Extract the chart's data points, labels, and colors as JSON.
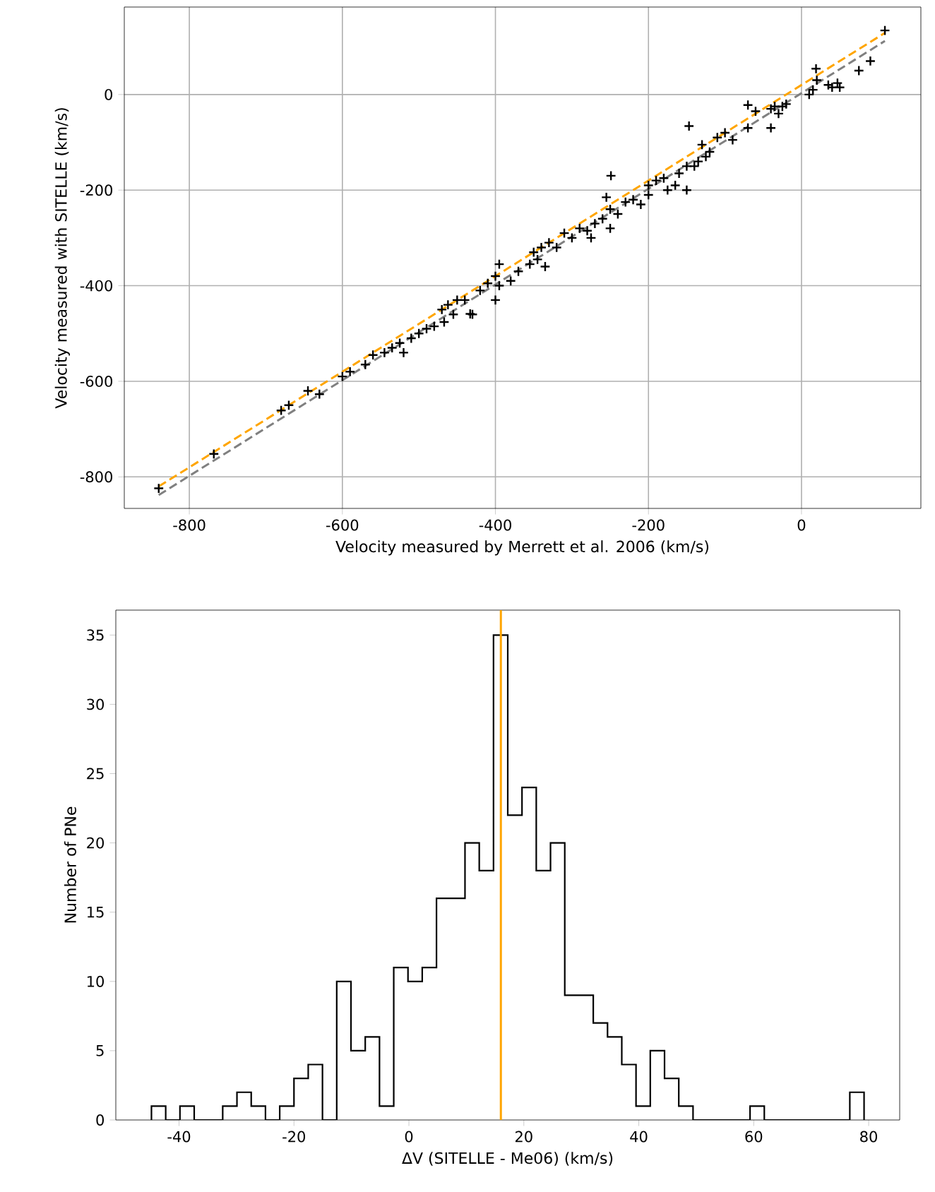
{
  "chart_data": [
    {
      "type": "scatter",
      "xlabel": "Velocity measured by Merrett et al. 2006 (km/s)",
      "ylabel": "Velocity measured with SITELLE (km/s)",
      "xlim": [
        -885,
        156
      ],
      "ylim": [
        -866,
        183
      ],
      "xticks": [
        -800,
        -600,
        -400,
        -200,
        0
      ],
      "yticks": [
        -800,
        -600,
        -400,
        -200,
        0
      ],
      "grid": true,
      "series": [
        {
          "type": "scatter",
          "color": "#000000",
          "marker": "cross",
          "x": [
            -840,
            -768,
            -680,
            -670,
            -645,
            -630,
            -600,
            -590,
            -570,
            -560,
            -545,
            -535,
            -525,
            -520,
            -510,
            -500,
            -490,
            -480,
            -470,
            -467,
            -462,
            -455,
            -450,
            -440,
            -433,
            -430,
            -420,
            -410,
            -400,
            -395,
            -395,
            -400,
            -380,
            -370,
            -355,
            -350,
            -345,
            -340,
            -335,
            -330,
            -320,
            -310,
            -300,
            -290,
            -280,
            -275,
            -270,
            -260,
            -250,
            -249,
            -255,
            -250,
            -240,
            -230,
            -220,
            -210,
            -200,
            -200,
            -190,
            -180,
            -175,
            -165,
            -160,
            -150,
            -147,
            -150,
            -140,
            -135,
            -130,
            -125,
            -120,
            -110,
            -100,
            -90,
            -70,
            -70,
            -60,
            -40,
            -40,
            -30,
            -35,
            -25,
            -20,
            10,
            15,
            19,
            20,
            35,
            40,
            47,
            50,
            75,
            90,
            109
          ],
          "values": [
            -824,
            -752,
            -661,
            -650,
            -620,
            -627,
            -590,
            -580,
            -565,
            -545,
            -540,
            -530,
            -520,
            -540,
            -510,
            -500,
            -490,
            -485,
            -450,
            -476,
            -440,
            -460,
            -430,
            -430,
            -459,
            -460,
            -410,
            -395,
            -380,
            -355,
            -400,
            -430,
            -390,
            -370,
            -355,
            -330,
            -345,
            -320,
            -360,
            -310,
            -320,
            -290,
            -300,
            -280,
            -285,
            -300,
            -270,
            -260,
            -240,
            -170,
            -215,
            -280,
            -250,
            -225,
            -220,
            -230,
            -190,
            -210,
            -180,
            -175,
            -200,
            -190,
            -165,
            -150,
            -66,
            -200,
            -150,
            -140,
            -105,
            -130,
            -120,
            -90,
            -80,
            -95,
            -70,
            -22,
            -35,
            -30,
            -70,
            -40,
            -25,
            -25,
            -20,
            0,
            10,
            54,
            30,
            20,
            15,
            24,
            15,
            50,
            70,
            134
          ]
        },
        {
          "type": "line",
          "color": "#808080",
          "line_style": "dashed",
          "marker": "none",
          "x": [
            -840,
            109
          ],
          "values": [
            -838,
            112
          ]
        },
        {
          "type": "line",
          "color": "#ffa500",
          "line_style": "dashed",
          "marker": "none",
          "x": [
            -840,
            109
          ],
          "values": [
            -820,
            129
          ]
        }
      ]
    },
    {
      "type": "histogram",
      "xlabel": "ΔV (SITELLE - Me06) (km/s)",
      "ylabel": "Number of PNe",
      "xlim": [
        -51,
        85.4
      ],
      "ylim": [
        0,
        36.8
      ],
      "xticks": [
        -40,
        -20,
        0,
        20,
        40,
        60,
        80
      ],
      "yticks": [
        0,
        5,
        10,
        15,
        20,
        25,
        30,
        35
      ],
      "grid": false,
      "color": "#000000",
      "bins": [
        -44.8,
        -42.32,
        -39.84,
        -37.36,
        -34.88,
        -32.4,
        -29.92,
        -27.44,
        -24.96,
        -22.48,
        -20.0,
        -17.52,
        -15.04,
        -12.56,
        -10.08,
        -7.6,
        -5.12,
        -2.64,
        -0.16,
        2.32,
        4.8,
        7.28,
        9.76,
        12.24,
        14.72,
        17.2,
        19.68,
        22.16,
        24.64,
        27.12,
        29.6,
        32.08,
        34.56,
        37.04,
        39.52,
        42.0,
        44.48,
        46.96,
        49.44,
        51.92,
        54.4,
        56.88,
        59.36,
        61.84,
        64.32,
        66.8,
        69.28,
        71.76,
        74.24,
        76.72,
        79.2
      ],
      "values": [
        1,
        0,
        1,
        0,
        0,
        1,
        2,
        1,
        0,
        1,
        3,
        4,
        0,
        10,
        5,
        6,
        1,
        11,
        10,
        11,
        16,
        16,
        20,
        18,
        35,
        22,
        24,
        18,
        20,
        9,
        9,
        7,
        6,
        4,
        1,
        5,
        3,
        1,
        0,
        0,
        0,
        0,
        1,
        0,
        0,
        0,
        0,
        0,
        0,
        2
      ],
      "ref_lines": [
        {
          "axis": "x",
          "value": 16,
          "color": "#ffa500",
          "line_style": "solid"
        }
      ]
    }
  ]
}
